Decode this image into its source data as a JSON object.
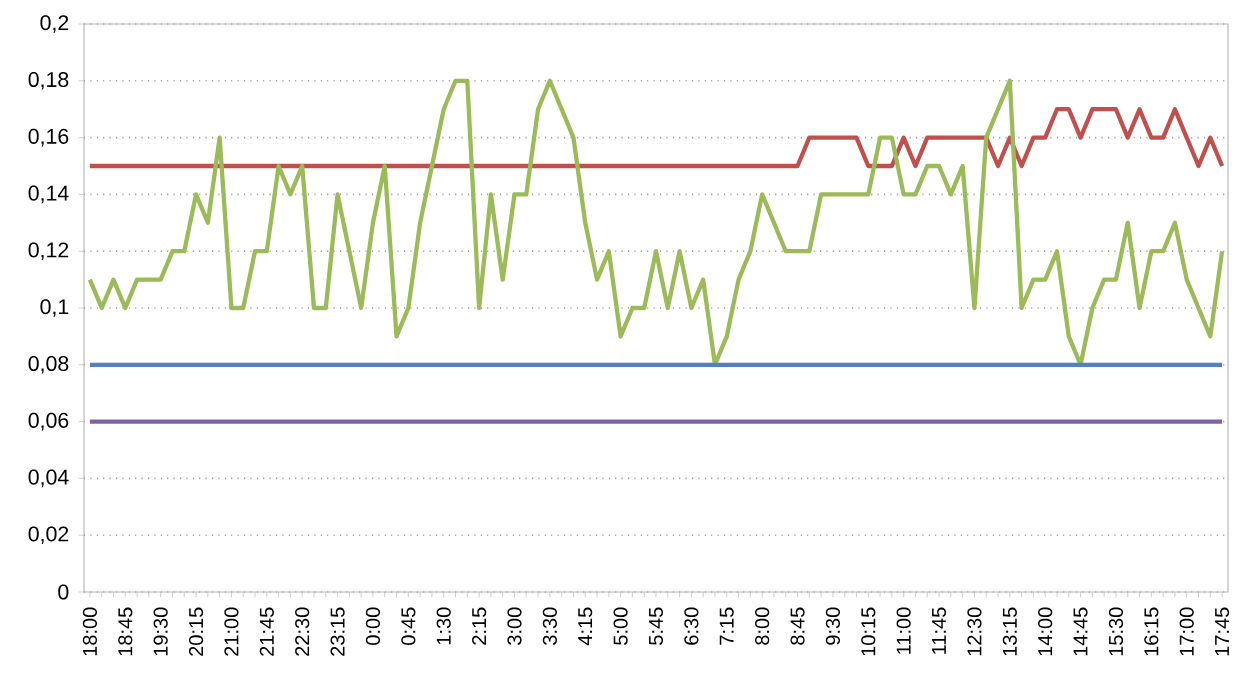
{
  "chart_data": {
    "type": "line",
    "categories": [
      "18:00",
      null,
      null,
      "18:45",
      null,
      null,
      "19:30",
      null,
      null,
      "20:15",
      null,
      null,
      "21:00",
      null,
      null,
      "21:45",
      null,
      null,
      "22:30",
      null,
      null,
      "23:15",
      null,
      null,
      "0:00",
      null,
      null,
      "0:45",
      null,
      null,
      "1:30",
      null,
      null,
      "2:15",
      null,
      null,
      "3:00",
      null,
      null,
      "3:30",
      null,
      null,
      "4:15",
      null,
      null,
      "5:00",
      null,
      null,
      "5:45",
      null,
      null,
      "6:30",
      null,
      null,
      "7:15",
      null,
      null,
      "8:00",
      null,
      null,
      "8:45",
      null,
      null,
      "9:30",
      null,
      null,
      "10:15",
      null,
      null,
      "11:00",
      null,
      null,
      "11:45",
      null,
      null,
      "12:30",
      null,
      null,
      "13:15",
      null,
      null,
      "14:00",
      null,
      null,
      "14:45",
      null,
      null,
      "15:30",
      null,
      null,
      "16:15",
      null,
      null,
      "17:00",
      null,
      null,
      "17:45"
    ],
    "series": [
      {
        "color": "#c0504d",
        "values": [
          0.15,
          0.15,
          0.15,
          0.15,
          0.15,
          0.15,
          0.15,
          0.15,
          0.15,
          0.15,
          0.15,
          0.15,
          0.15,
          0.15,
          0.15,
          0.15,
          0.15,
          0.15,
          0.15,
          0.15,
          0.15,
          0.15,
          0.15,
          0.15,
          0.15,
          0.15,
          0.15,
          0.15,
          0.15,
          0.15,
          0.15,
          0.15,
          0.15,
          0.15,
          0.15,
          0.15,
          0.15,
          0.15,
          0.15,
          0.15,
          0.15,
          0.15,
          0.15,
          0.15,
          0.15,
          0.15,
          0.15,
          0.15,
          0.15,
          0.15,
          0.15,
          0.15,
          0.15,
          0.15,
          0.15,
          0.15,
          0.15,
          0.15,
          0.15,
          0.15,
          0.15,
          0.16,
          0.16,
          0.16,
          0.16,
          0.16,
          0.15,
          0.15,
          0.15,
          0.16,
          0.15,
          0.16,
          0.16,
          0.16,
          0.16,
          0.16,
          0.16,
          0.15,
          0.16,
          0.15,
          0.16,
          0.16,
          0.17,
          0.17,
          0.16,
          0.17,
          0.17,
          0.17,
          0.16,
          0.17,
          0.16,
          0.16,
          0.17,
          0.16,
          0.15,
          0.16,
          0.15
        ]
      },
      {
        "color": "#9bbb59",
        "values": [
          0.11,
          0.1,
          0.11,
          0.1,
          0.11,
          0.11,
          0.11,
          0.12,
          0.12,
          0.14,
          0.13,
          0.16,
          0.1,
          0.1,
          0.12,
          0.12,
          0.15,
          0.14,
          0.15,
          0.1,
          0.1,
          0.14,
          0.12,
          0.1,
          0.13,
          0.15,
          0.09,
          0.1,
          0.13,
          0.15,
          0.17,
          0.18,
          0.18,
          0.1,
          0.14,
          0.11,
          0.14,
          0.14,
          0.17,
          0.18,
          0.17,
          0.16,
          0.13,
          0.11,
          0.12,
          0.09,
          0.1,
          0.1,
          0.12,
          0.1,
          0.12,
          0.1,
          0.11,
          0.08,
          0.09,
          0.11,
          0.12,
          0.14,
          0.13,
          0.12,
          0.12,
          0.12,
          0.14,
          0.14,
          0.14,
          0.14,
          0.14,
          0.16,
          0.16,
          0.14,
          0.14,
          0.15,
          0.15,
          0.14,
          0.15,
          0.1,
          0.16,
          0.17,
          0.18,
          0.1,
          0.11,
          0.11,
          0.12,
          0.09,
          0.08,
          0.1,
          0.11,
          0.11,
          0.13,
          0.1,
          0.12,
          0.12,
          0.13,
          0.11,
          0.1,
          0.09,
          0.12
        ]
      },
      {
        "color": "#4f81bd",
        "values": [
          0.08,
          0.08,
          0.08,
          0.08,
          0.08,
          0.08,
          0.08,
          0.08,
          0.08,
          0.08,
          0.08,
          0.08,
          0.08,
          0.08,
          0.08,
          0.08,
          0.08,
          0.08,
          0.08,
          0.08,
          0.08,
          0.08,
          0.08,
          0.08,
          0.08,
          0.08,
          0.08,
          0.08,
          0.08,
          0.08,
          0.08,
          0.08,
          0.08,
          0.08,
          0.08,
          0.08,
          0.08,
          0.08,
          0.08,
          0.08,
          0.08,
          0.08,
          0.08,
          0.08,
          0.08,
          0.08,
          0.08,
          0.08,
          0.08,
          0.08,
          0.08,
          0.08,
          0.08,
          0.08,
          0.08,
          0.08,
          0.08,
          0.08,
          0.08,
          0.08,
          0.08,
          0.08,
          0.08,
          0.08,
          0.08,
          0.08,
          0.08,
          0.08,
          0.08,
          0.08,
          0.08,
          0.08,
          0.08,
          0.08,
          0.08,
          0.08,
          0.08,
          0.08,
          0.08,
          0.08,
          0.08,
          0.08,
          0.08,
          0.08,
          0.08,
          0.08,
          0.08,
          0.08,
          0.08,
          0.08,
          0.08,
          0.08,
          0.08,
          0.08,
          0.08,
          0.08,
          0.08
        ]
      },
      {
        "color": "#8064a2",
        "values": [
          0.06,
          0.06,
          0.06,
          0.06,
          0.06,
          0.06,
          0.06,
          0.06,
          0.06,
          0.06,
          0.06,
          0.06,
          0.06,
          0.06,
          0.06,
          0.06,
          0.06,
          0.06,
          0.06,
          0.06,
          0.06,
          0.06,
          0.06,
          0.06,
          0.06,
          0.06,
          0.06,
          0.06,
          0.06,
          0.06,
          0.06,
          0.06,
          0.06,
          0.06,
          0.06,
          0.06,
          0.06,
          0.06,
          0.06,
          0.06,
          0.06,
          0.06,
          0.06,
          0.06,
          0.06,
          0.06,
          0.06,
          0.06,
          0.06,
          0.06,
          0.06,
          0.06,
          0.06,
          0.06,
          0.06,
          0.06,
          0.06,
          0.06,
          0.06,
          0.06,
          0.06,
          0.06,
          0.06,
          0.06,
          0.06,
          0.06,
          0.06,
          0.06,
          0.06,
          0.06,
          0.06,
          0.06,
          0.06,
          0.06,
          0.06,
          0.06,
          0.06,
          0.06,
          0.06,
          0.06,
          0.06,
          0.06,
          0.06,
          0.06,
          0.06,
          0.06,
          0.06,
          0.06,
          0.06,
          0.06,
          0.06,
          0.06,
          0.06,
          0.06,
          0.06,
          0.06,
          0.06
        ]
      }
    ],
    "ylim": [
      0,
      0.2
    ],
    "yticks": [
      0,
      {
        "value": 0.02,
        "label": "0,02"
      },
      {
        "value": 0.04,
        "label": "0,04"
      },
      {
        "value": 0.06,
        "label": "0,06"
      },
      {
        "value": 0.08,
        "label": "0,08"
      },
      {
        "value": 0.1,
        "label": "0,1"
      },
      {
        "value": 0.12,
        "label": "0,12"
      },
      {
        "value": 0.14,
        "label": "0,14"
      },
      {
        "value": 0.16,
        "label": "0,16"
      },
      {
        "value": 0.18,
        "label": "0,18"
      },
      {
        "value": 0.2,
        "label": "0,2"
      }
    ],
    "grid": "y",
    "legend": false
  }
}
